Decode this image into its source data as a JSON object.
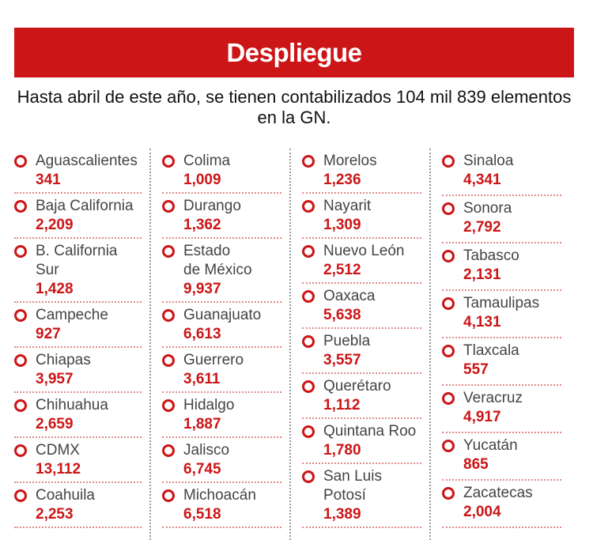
{
  "title": "Despliegue",
  "subtitle": "Hasta abril de este año, se tienen contabilizados 104 mil 839 elementos en la GN.",
  "accent_color": "#cc1517",
  "icon": "circle-bullet-icon",
  "columns": [
    [
      {
        "name": "Aguascalientes",
        "value": "341"
      },
      {
        "name": "Baja California",
        "value": "2,209"
      },
      {
        "name": "B. California Sur",
        "value": "1,428"
      },
      {
        "name": "Campeche",
        "value": "927"
      },
      {
        "name": "Chiapas",
        "value": "3,957"
      },
      {
        "name": "Chihuahua",
        "value": "2,659"
      },
      {
        "name": "CDMX",
        "value": "13,112"
      },
      {
        "name": "Coahuila",
        "value": "2,253"
      }
    ],
    [
      {
        "name": "Colima",
        "value": "1,009"
      },
      {
        "name": "Durango",
        "value": "1,362"
      },
      {
        "name": "Estado de México",
        "value": "9,937"
      },
      {
        "name": "Guanajuato",
        "value": "6,613"
      },
      {
        "name": "Guerrero",
        "value": "3,611"
      },
      {
        "name": "Hidalgo",
        "value": "1,887"
      },
      {
        "name": "Jalisco",
        "value": "6,745"
      },
      {
        "name": "Michoacán",
        "value": "6,518"
      }
    ],
    [
      {
        "name": "Morelos",
        "value": "1,236"
      },
      {
        "name": "Nayarit",
        "value": "1,309"
      },
      {
        "name": "Nuevo León",
        "value": "2,512"
      },
      {
        "name": "Oaxaca",
        "value": "5,638"
      },
      {
        "name": "Puebla",
        "value": "3,557"
      },
      {
        "name": "Querétaro",
        "value": "1,112"
      },
      {
        "name": "Quintana Roo",
        "value": "1,780"
      },
      {
        "name": "San Luis Potosí",
        "value": "1,389"
      }
    ],
    [
      {
        "name": "Sinaloa",
        "value": "4,341"
      },
      {
        "name": "Sonora",
        "value": "2,792"
      },
      {
        "name": "Tabasco",
        "value": "2,131"
      },
      {
        "name": "Tamaulipas",
        "value": "4,131"
      },
      {
        "name": "Tlaxcala",
        "value": "557"
      },
      {
        "name": "Veracruz",
        "value": "4,917"
      },
      {
        "name": "Yucatán",
        "value": "865"
      },
      {
        "name": "Zacatecas",
        "value": "2,004"
      }
    ]
  ]
}
